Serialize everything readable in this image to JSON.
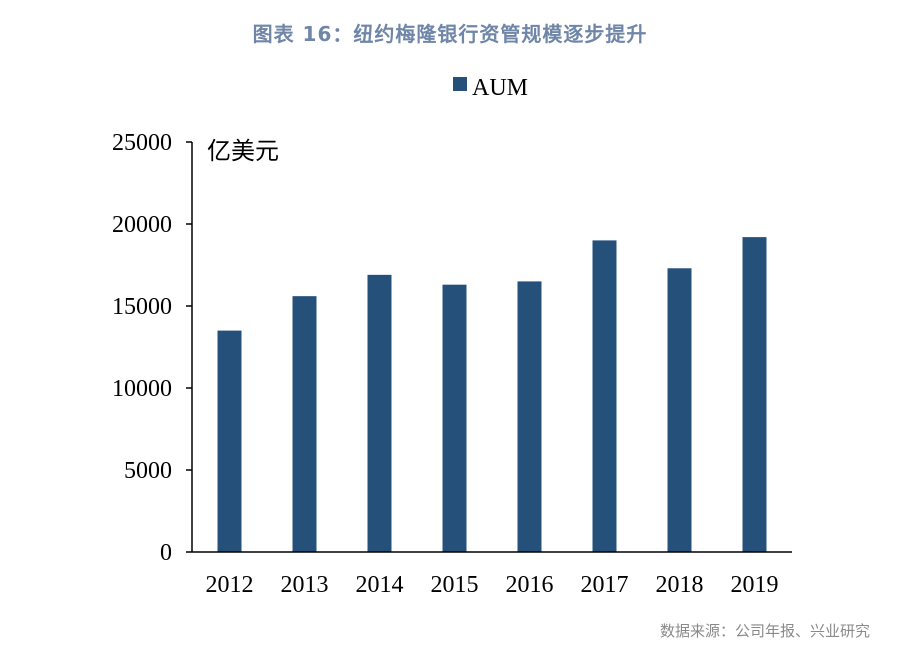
{
  "title": "图表 16：纽约梅隆银行资管规模逐步提升",
  "source": "数据来源：公司年报、兴业研究",
  "chart_data": {
    "type": "bar",
    "categories": [
      "2012",
      "2013",
      "2014",
      "2015",
      "2016",
      "2017",
      "2018",
      "2019"
    ],
    "series": [
      {
        "name": "AUM",
        "values": [
          13500,
          15600,
          16900,
          16300,
          16500,
          19000,
          17300,
          19200
        ]
      }
    ],
    "unit": "亿美元",
    "ylim": [
      0,
      25000
    ],
    "yticks": [
      "0",
      "5000",
      "10000",
      "15000",
      "20000",
      "25000"
    ],
    "legend_position": "top-center",
    "grid": false,
    "colors": {
      "bar": "#24507a",
      "axis": "#000000"
    }
  }
}
